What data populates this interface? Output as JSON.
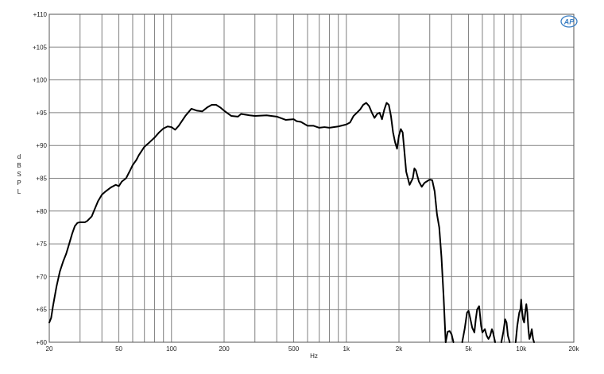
{
  "chart_data": {
    "type": "line",
    "title": "",
    "xlabel": "Hz",
    "ylabel": "d B S P L",
    "xscale": "log",
    "xlim": [
      20,
      20000
    ],
    "ylim": [
      60,
      110
    ],
    "grid": true,
    "legend": "none",
    "line_color": "#000000",
    "grid_color": "#808080",
    "logo": "AP",
    "logo_color": "#3b7fc4",
    "x_tick_labels": [
      {
        "value": 20,
        "label": "20"
      },
      {
        "value": 50,
        "label": "50"
      },
      {
        "value": 100,
        "label": "100"
      },
      {
        "value": 200,
        "label": "200"
      },
      {
        "value": 500,
        "label": "500"
      },
      {
        "value": 1000,
        "label": "1k"
      },
      {
        "value": 2000,
        "label": "2k"
      },
      {
        "value": 5000,
        "label": "5k"
      },
      {
        "value": 10000,
        "label": "10k"
      },
      {
        "value": 20000,
        "label": "20k"
      }
    ],
    "y_tick_labels": [
      {
        "value": 60,
        "label": "+60"
      },
      {
        "value": 65,
        "label": "+65"
      },
      {
        "value": 70,
        "label": "+70"
      },
      {
        "value": 75,
        "label": "+75"
      },
      {
        "value": 80,
        "label": "+80"
      },
      {
        "value": 85,
        "label": "+85"
      },
      {
        "value": 90,
        "label": "+90"
      },
      {
        "value": 95,
        "label": "+95"
      },
      {
        "value": 100,
        "label": "+100"
      },
      {
        "value": 105,
        "label": "+105"
      },
      {
        "value": 110,
        "label": "+110"
      }
    ],
    "series": [
      {
        "segments": [
          [
            [
              20,
              63.0
            ],
            [
              20.5,
              63.7
            ],
            [
              21,
              65.5
            ],
            [
              22,
              68.5
            ],
            [
              23,
              70.8
            ],
            [
              24,
              72.3
            ],
            [
              25,
              73.5
            ],
            [
              26,
              75.0
            ],
            [
              27,
              76.5
            ],
            [
              28,
              77.7
            ],
            [
              29,
              78.2
            ],
            [
              30,
              78.3
            ],
            [
              32,
              78.3
            ],
            [
              33,
              78.5
            ],
            [
              35,
              79.2
            ],
            [
              36,
              80.0
            ],
            [
              38,
              81.5
            ],
            [
              40,
              82.5
            ],
            [
              42,
              83.0
            ],
            [
              45,
              83.6
            ],
            [
              48,
              84.0
            ],
            [
              50,
              83.8
            ],
            [
              52,
              84.5
            ],
            [
              55,
              85.0
            ],
            [
              58,
              86.2
            ],
            [
              60,
              87.0
            ],
            [
              63,
              87.8
            ],
            [
              65,
              88.5
            ],
            [
              70,
              89.8
            ],
            [
              75,
              90.5
            ],
            [
              80,
              91.2
            ],
            [
              85,
              92.0
            ],
            [
              90,
              92.6
            ],
            [
              95,
              92.9
            ],
            [
              100,
              92.8
            ],
            [
              105,
              92.4
            ],
            [
              110,
              93.0
            ],
            [
              120,
              94.5
            ],
            [
              130,
              95.6
            ],
            [
              140,
              95.3
            ],
            [
              150,
              95.2
            ],
            [
              160,
              95.8
            ],
            [
              170,
              96.2
            ],
            [
              180,
              96.2
            ],
            [
              190,
              95.8
            ],
            [
              200,
              95.3
            ],
            [
              220,
              94.5
            ],
            [
              240,
              94.4
            ],
            [
              250,
              94.8
            ],
            [
              280,
              94.6
            ],
            [
              300,
              94.5
            ],
            [
              350,
              94.6
            ],
            [
              400,
              94.4
            ],
            [
              450,
              93.9
            ],
            [
              500,
              94.0
            ],
            [
              520,
              93.7
            ],
            [
              550,
              93.6
            ],
            [
              600,
              93.0
            ],
            [
              650,
              93.0
            ],
            [
              700,
              92.7
            ],
            [
              750,
              92.8
            ],
            [
              800,
              92.7
            ],
            [
              900,
              92.9
            ],
            [
              1000,
              93.2
            ],
            [
              1050,
              93.5
            ],
            [
              1100,
              94.5
            ],
            [
              1150,
              95.0
            ],
            [
              1200,
              95.5
            ],
            [
              1250,
              96.2
            ],
            [
              1300,
              96.5
            ],
            [
              1350,
              96.0
            ],
            [
              1400,
              95.0
            ],
            [
              1450,
              94.2
            ],
            [
              1500,
              94.8
            ],
            [
              1550,
              95.0
            ],
            [
              1600,
              94.0
            ],
            [
              1650,
              95.5
            ],
            [
              1700,
              96.5
            ],
            [
              1750,
              96.2
            ],
            [
              1800,
              94.5
            ],
            [
              1850,
              92.0
            ],
            [
              1900,
              90.5
            ],
            [
              1950,
              89.5
            ],
            [
              2000,
              91.5
            ],
            [
              2050,
              92.5
            ],
            [
              2100,
              92.0
            ],
            [
              2150,
              89.0
            ],
            [
              2200,
              86.0
            ],
            [
              2300,
              84.0
            ],
            [
              2400,
              85.0
            ],
            [
              2450,
              86.5
            ],
            [
              2500,
              86.2
            ],
            [
              2600,
              84.5
            ],
            [
              2700,
              83.7
            ],
            [
              2800,
              84.3
            ],
            [
              3000,
              84.8
            ],
            [
              3100,
              84.7
            ],
            [
              3200,
              83.0
            ],
            [
              3300,
              79.5
            ],
            [
              3400,
              77.5
            ],
            [
              3500,
              73.0
            ],
            [
              3600,
              67.0
            ],
            [
              3700,
              60.0
            ]
          ],
          [
            [
              3700,
              60.0
            ],
            [
              3800,
              61.6
            ],
            [
              3900,
              61.7
            ],
            [
              4000,
              61.2
            ],
            [
              4100,
              60.0
            ]
          ],
          [
            [
              4600,
              60.0
            ],
            [
              4750,
              62.0
            ],
            [
              4900,
              64.5
            ],
            [
              5000,
              64.8
            ],
            [
              5100,
              63.8
            ],
            [
              5250,
              62.2
            ],
            [
              5400,
              61.5
            ],
            [
              5500,
              63.5
            ],
            [
              5600,
              65.0
            ],
            [
              5750,
              65.5
            ],
            [
              5900,
              62.5
            ],
            [
              6000,
              61.5
            ],
            [
              6200,
              62.0
            ],
            [
              6350,
              61.0
            ],
            [
              6500,
              60.5
            ],
            [
              6650,
              61.0
            ],
            [
              6800,
              62.0
            ],
            [
              6900,
              61.5
            ],
            [
              7100,
              60.0
            ]
          ],
          [
            [
              7700,
              60.0
            ],
            [
              7900,
              61.5
            ],
            [
              8100,
              63.5
            ],
            [
              8250,
              63.0
            ],
            [
              8400,
              61.0
            ],
            [
              8600,
              60.0
            ]
          ],
          [
            [
              9300,
              60.0
            ],
            [
              9500,
              62.5
            ],
            [
              9750,
              64.5
            ],
            [
              9900,
              65.0
            ],
            [
              10000,
              66.5
            ],
            [
              10100,
              65.0
            ],
            [
              10250,
              63.5
            ],
            [
              10400,
              63.0
            ],
            [
              10550,
              64.5
            ],
            [
              10700,
              65.8
            ],
            [
              10850,
              64.5
            ],
            [
              11000,
              62.0
            ],
            [
              11150,
              60.5
            ],
            [
              11300,
              61.0
            ],
            [
              11500,
              62.0
            ],
            [
              11700,
              60.5
            ],
            [
              11850,
              60.0
            ]
          ]
        ]
      }
    ]
  }
}
